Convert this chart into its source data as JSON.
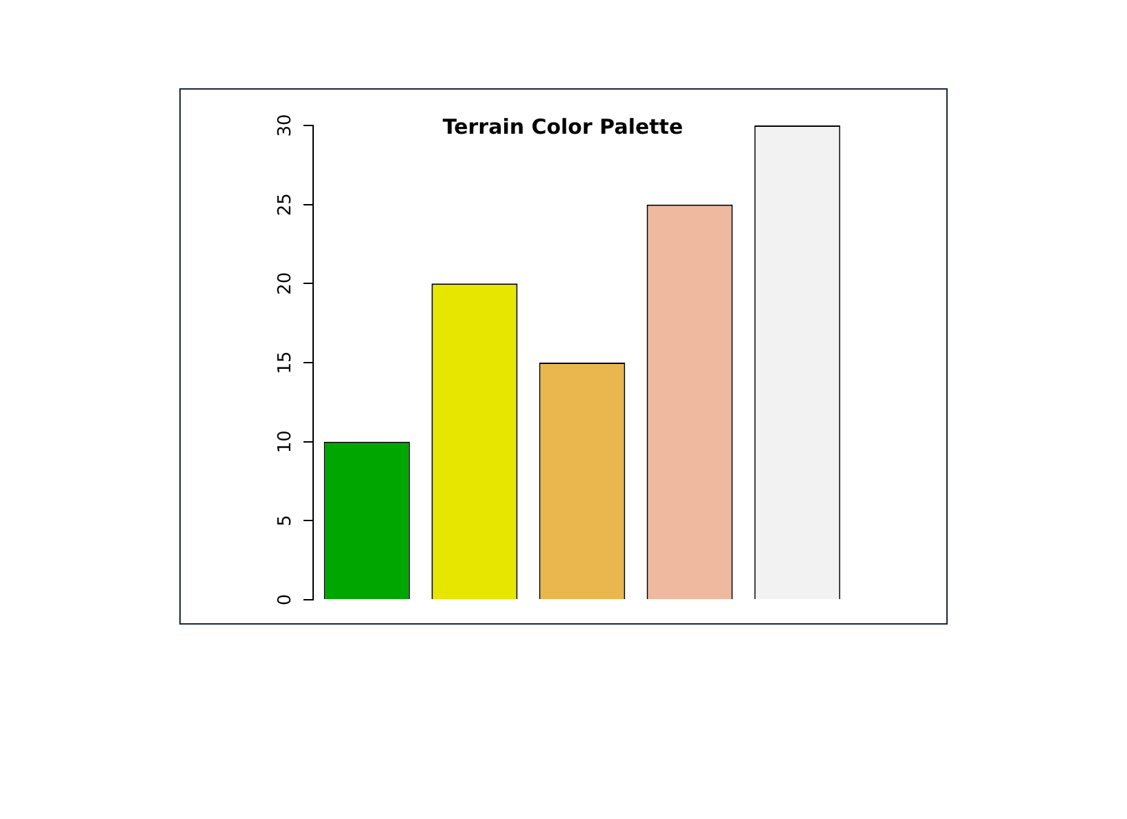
{
  "chart_data": {
    "type": "bar",
    "title": "Terrain Color Palette",
    "categories": [
      null,
      null,
      null,
      null,
      null
    ],
    "values": [
      10,
      20,
      15,
      25,
      30
    ],
    "colors": [
      "#00a600",
      "#e6e600",
      "#eab64e",
      "#eeb99f",
      "#f2f2f2"
    ],
    "ylim": [
      0,
      30
    ],
    "yticks": [
      0,
      5,
      10,
      15,
      20,
      25,
      30
    ],
    "grid": false,
    "legend": false,
    "tick_labels": "y"
  }
}
